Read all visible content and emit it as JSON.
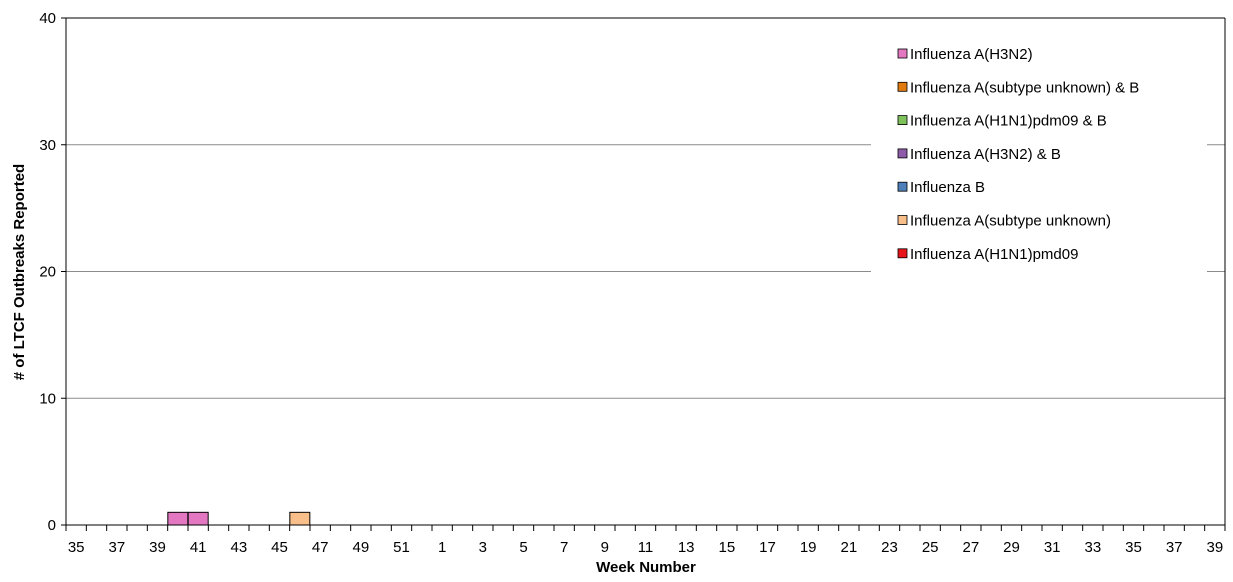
{
  "chart_data": {
    "type": "bar",
    "stacked": true,
    "title": "",
    "xlabel": "Week Number",
    "ylabel": "# of LTCF Outbreaks Reported",
    "ylim": [
      0,
      40
    ],
    "yticks": [
      0,
      10,
      20,
      30,
      40
    ],
    "grid": true,
    "legend_position": "top-right",
    "categories": [
      "35",
      "36",
      "37",
      "38",
      "39",
      "40",
      "41",
      "42",
      "43",
      "44",
      "45",
      "46",
      "47",
      "48",
      "49",
      "50",
      "51",
      "52",
      "1",
      "2",
      "3",
      "4",
      "5",
      "6",
      "7",
      "8",
      "9",
      "10",
      "11",
      "12",
      "13",
      "14",
      "15",
      "16",
      "17",
      "18",
      "19",
      "20",
      "21",
      "22",
      "23",
      "24",
      "25",
      "26",
      "27",
      "28",
      "29",
      "30",
      "31",
      "32",
      "33",
      "34",
      "35",
      "36",
      "37",
      "38",
      "39"
    ],
    "tick_labels": [
      "35",
      "37",
      "39",
      "41",
      "43",
      "45",
      "47",
      "49",
      "51",
      "1",
      "3",
      "5",
      "7",
      "9",
      "11",
      "13",
      "15",
      "17",
      "19",
      "21",
      "23",
      "25",
      "27",
      "29",
      "31",
      "33",
      "35",
      "37",
      "39"
    ],
    "series": [
      {
        "name": "Influenza A(H3N2)",
        "color": "#e377c2",
        "values": [
          0,
          0,
          0,
          0,
          0,
          1,
          1,
          0,
          0,
          0,
          0,
          0,
          0,
          0,
          0,
          0,
          0,
          0,
          0,
          0,
          0,
          0,
          0,
          0,
          0,
          0,
          0,
          0,
          0,
          0,
          0,
          0,
          0,
          0,
          0,
          0,
          0,
          0,
          0,
          0,
          0,
          0,
          0,
          0,
          0,
          0,
          0,
          0,
          0,
          0,
          0,
          0,
          0,
          0,
          0,
          0,
          0
        ]
      },
      {
        "name": "Influenza A(subtype unknown) & B",
        "color": "#e07b10",
        "values": [
          0,
          0,
          0,
          0,
          0,
          0,
          0,
          0,
          0,
          0,
          0,
          0,
          0,
          0,
          0,
          0,
          0,
          0,
          0,
          0,
          0,
          0,
          0,
          0,
          0,
          0,
          0,
          0,
          0,
          0,
          0,
          0,
          0,
          0,
          0,
          0,
          0,
          0,
          0,
          0,
          0,
          0,
          0,
          0,
          0,
          0,
          0,
          0,
          0,
          0,
          0,
          0,
          0,
          0,
          0,
          0,
          0
        ]
      },
      {
        "name": "Influenza A(H1N1)pdm09 & B",
        "color": "#7fc15a",
        "values": [
          0,
          0,
          0,
          0,
          0,
          0,
          0,
          0,
          0,
          0,
          0,
          0,
          0,
          0,
          0,
          0,
          0,
          0,
          0,
          0,
          0,
          0,
          0,
          0,
          0,
          0,
          0,
          0,
          0,
          0,
          0,
          0,
          0,
          0,
          0,
          0,
          0,
          0,
          0,
          0,
          0,
          0,
          0,
          0,
          0,
          0,
          0,
          0,
          0,
          0,
          0,
          0,
          0,
          0,
          0,
          0,
          0
        ]
      },
      {
        "name": "Influenza A(H3N2) & B",
        "color": "#8e5ba9",
        "values": [
          0,
          0,
          0,
          0,
          0,
          0,
          0,
          0,
          0,
          0,
          0,
          0,
          0,
          0,
          0,
          0,
          0,
          0,
          0,
          0,
          0,
          0,
          0,
          0,
          0,
          0,
          0,
          0,
          0,
          0,
          0,
          0,
          0,
          0,
          0,
          0,
          0,
          0,
          0,
          0,
          0,
          0,
          0,
          0,
          0,
          0,
          0,
          0,
          0,
          0,
          0,
          0,
          0,
          0,
          0,
          0,
          0
        ]
      },
      {
        "name": "Influenza B",
        "color": "#4f7fb8",
        "values": [
          0,
          0,
          0,
          0,
          0,
          0,
          0,
          0,
          0,
          0,
          0,
          0,
          0,
          0,
          0,
          0,
          0,
          0,
          0,
          0,
          0,
          0,
          0,
          0,
          0,
          0,
          0,
          0,
          0,
          0,
          0,
          0,
          0,
          0,
          0,
          0,
          0,
          0,
          0,
          0,
          0,
          0,
          0,
          0,
          0,
          0,
          0,
          0,
          0,
          0,
          0,
          0,
          0,
          0,
          0,
          0,
          0
        ]
      },
      {
        "name": "Influenza A(subtype unknown)",
        "color": "#f9bf8b",
        "values": [
          0,
          0,
          0,
          0,
          0,
          0,
          0,
          0,
          0,
          0,
          0,
          1,
          0,
          0,
          0,
          0,
          0,
          0,
          0,
          0,
          0,
          0,
          0,
          0,
          0,
          0,
          0,
          0,
          0,
          0,
          0,
          0,
          0,
          0,
          0,
          0,
          0,
          0,
          0,
          0,
          0,
          0,
          0,
          0,
          0,
          0,
          0,
          0,
          0,
          0,
          0,
          0,
          0,
          0,
          0,
          0,
          0
        ]
      },
      {
        "name": "Influenza A(H1N1)pmd09",
        "color": "#e8141c",
        "values": [
          0,
          0,
          0,
          0,
          0,
          0,
          0,
          0,
          0,
          0,
          0,
          0,
          0,
          0,
          0,
          0,
          0,
          0,
          0,
          0,
          0,
          0,
          0,
          0,
          0,
          0,
          0,
          0,
          0,
          0,
          0,
          0,
          0,
          0,
          0,
          0,
          0,
          0,
          0,
          0,
          0,
          0,
          0,
          0,
          0,
          0,
          0,
          0,
          0,
          0,
          0,
          0,
          0,
          0,
          0,
          0,
          0
        ]
      }
    ]
  }
}
